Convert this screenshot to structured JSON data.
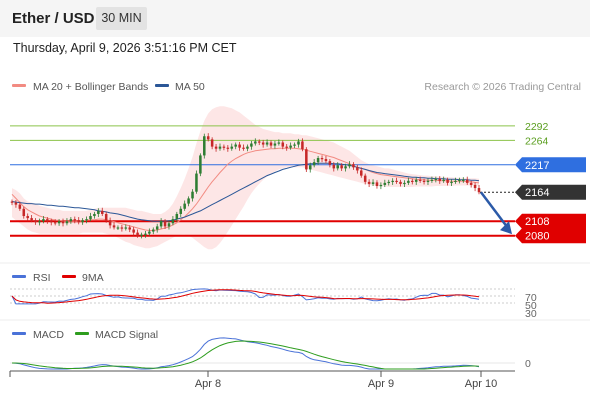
{
  "header": {
    "title": "Ether / USD",
    "timeframe": "30 MIN",
    "datetime": "Thursday, April 9, 2026 3:51:16 PM CET"
  },
  "legend": {
    "ma20_bb": "MA 20 + Bollinger Bands",
    "ma50": "MA 50",
    "credit": "Research © 2026 Trading Central"
  },
  "colors": {
    "up": "#2e7d32",
    "down": "#c62828",
    "ma20": "#f28b82",
    "ma50": "#2b5797",
    "band": "#fde2e2",
    "resistance": "#8bc34a",
    "pivot": "#2f6fe0",
    "support": "#e00000",
    "last": "#333333",
    "rsi": "#4a72d8",
    "rsi_ma": "#e00000",
    "macd": "#4a72d8",
    "macd_signal": "#2e9d1e",
    "arrow": "#2b5aa8"
  },
  "chart_data": [
    {
      "type": "candlestick",
      "title": "Ether / USD",
      "timeframe": "30 MIN",
      "x_ticks": [
        "Apr 8",
        "Apr 9",
        "Apr 10"
      ],
      "ylim": [
        2037,
        2342
      ],
      "levels": [
        {
          "value": 2292,
          "label": "2292",
          "kind": "resistance"
        },
        {
          "value": 2264,
          "label": "2264",
          "kind": "resistance"
        },
        {
          "value": 2217,
          "label": "2217",
          "kind": "pivot"
        },
        {
          "value": 2164,
          "label": "2164",
          "kind": "last"
        },
        {
          "value": 2108,
          "label": "2108",
          "kind": "support"
        },
        {
          "value": 2080,
          "label": "2080",
          "kind": "support"
        }
      ],
      "close": [
        2144,
        2140,
        2132,
        2118,
        2114,
        2110,
        2106,
        2108,
        2112,
        2108,
        2106,
        2104,
        2108,
        2104,
        2108,
        2112,
        2110,
        2106,
        2110,
        2112,
        2118,
        2122,
        2128,
        2122,
        2110,
        2100,
        2096,
        2096,
        2094,
        2096,
        2092,
        2086,
        2080,
        2082,
        2084,
        2088,
        2092,
        2098,
        2108,
        2098,
        2104,
        2112,
        2122,
        2132,
        2142,
        2152,
        2165,
        2200,
        2235,
        2272,
        2266,
        2252,
        2248,
        2252,
        2250,
        2248,
        2252,
        2256,
        2250,
        2248,
        2252,
        2258,
        2262,
        2260,
        2256,
        2260,
        2254,
        2258,
        2260,
        2252,
        2250,
        2254,
        2256,
        2262,
        2247,
        2208,
        2216,
        2222,
        2230,
        2228,
        2224,
        2217,
        2210,
        2216,
        2210,
        2214,
        2218,
        2212,
        2206,
        2196,
        2184,
        2180,
        2183,
        2176,
        2178,
        2182,
        2184,
        2186,
        2184,
        2180,
        2182,
        2186,
        2184,
        2188,
        2186,
        2184,
        2186,
        2188,
        2190,
        2186,
        2188,
        2182,
        2184,
        2186,
        2188,
        2188,
        2182,
        2178,
        2172,
        2164
      ],
      "ma20": [
        2160,
        2152,
        2144,
        2136,
        2130,
        2126,
        2122,
        2118,
        2116,
        2114,
        2112,
        2110,
        2110,
        2108,
        2108,
        2108,
        2108,
        2108,
        2109,
        2110,
        2111,
        2111,
        2112,
        2112,
        2111,
        2109,
        2107,
        2105,
        2103,
        2101,
        2099,
        2097,
        2095,
        2093,
        2091,
        2090,
        2090,
        2091,
        2093,
        2095,
        2097,
        2101,
        2105,
        2111,
        2117,
        2124,
        2132,
        2141,
        2152,
        2163,
        2174,
        2184,
        2193,
        2202,
        2210,
        2218,
        2224,
        2229,
        2233,
        2237,
        2240,
        2242,
        2244,
        2245,
        2246,
        2247,
        2248,
        2248,
        2249,
        2249,
        2249,
        2249,
        2249,
        2248,
        2247,
        2245,
        2243,
        2241,
        2239,
        2237,
        2235,
        2233,
        2231,
        2228,
        2225,
        2222,
        2219,
        2215,
        2212,
        2210,
        2208,
        2205,
        2202,
        2200,
        2198,
        2197,
        2196,
        2195,
        2194,
        2193,
        2192,
        2191,
        2190,
        2189,
        2188,
        2188,
        2187,
        2187,
        2187,
        2186,
        2186,
        2186,
        2185,
        2185,
        2185,
        2185,
        2184,
        2184,
        2183,
        2182
      ],
      "ma50": [
        2146,
        2145,
        2144,
        2143,
        2142,
        2142,
        2141,
        2141,
        2140,
        2139,
        2139,
        2138,
        2137,
        2137,
        2136,
        2135,
        2134,
        2134,
        2133,
        2132,
        2131,
        2130,
        2128,
        2127,
        2126,
        2124,
        2123,
        2122,
        2120,
        2118,
        2116,
        2114,
        2112,
        2111,
        2110,
        2109,
        2108,
        2108,
        2108,
        2108,
        2109,
        2110,
        2112,
        2114,
        2116,
        2119,
        2122,
        2125,
        2128,
        2132,
        2136,
        2140,
        2144,
        2148,
        2152,
        2156,
        2160,
        2164,
        2168,
        2172,
        2176,
        2180,
        2184,
        2188,
        2192,
        2196,
        2199,
        2202,
        2205,
        2208,
        2210,
        2212,
        2214,
        2216,
        2217,
        2218,
        2219,
        2219,
        2220,
        2220,
        2220,
        2220,
        2219,
        2219,
        2218,
        2217,
        2216,
        2214,
        2212,
        2210,
        2208,
        2206,
        2204,
        2202,
        2201,
        2200,
        2199,
        2198,
        2197,
        2196,
        2195,
        2194,
        2193,
        2193,
        2192,
        2192,
        2191,
        2191,
        2190,
        2190,
        2190,
        2189,
        2189,
        2189,
        2188,
        2188,
        2188,
        2187,
        2187,
        2186
      ],
      "bb_upper": [
        2172,
        2168,
        2162,
        2152,
        2146,
        2144,
        2142,
        2138,
        2136,
        2134,
        2132,
        2130,
        2130,
        2128,
        2128,
        2128,
        2128,
        2128,
        2128,
        2128,
        2130,
        2132,
        2134,
        2134,
        2134,
        2134,
        2134,
        2134,
        2134,
        2134,
        2132,
        2130,
        2128,
        2128,
        2126,
        2124,
        2122,
        2122,
        2122,
        2126,
        2132,
        2142,
        2156,
        2172,
        2190,
        2210,
        2232,
        2258,
        2282,
        2302,
        2316,
        2324,
        2328,
        2330,
        2330,
        2328,
        2326,
        2322,
        2318,
        2312,
        2306,
        2300,
        2294,
        2290,
        2286,
        2284,
        2282,
        2280,
        2280,
        2278,
        2278,
        2278,
        2276,
        2276,
        2274,
        2274,
        2272,
        2270,
        2268,
        2266,
        2264,
        2262,
        2260,
        2256,
        2252,
        2248,
        2244,
        2238,
        2232,
        2226,
        2222,
        2218,
        2216,
        2214,
        2212,
        2210,
        2210,
        2208,
        2206,
        2204,
        2202,
        2200,
        2199,
        2198,
        2197,
        2196,
        2196,
        2195,
        2195,
        2194,
        2194,
        2193,
        2193,
        2192,
        2192,
        2192,
        2191,
        2191,
        2191,
        2190
      ],
      "bb_lower": [
        2116,
        2110,
        2104,
        2098,
        2092,
        2088,
        2086,
        2084,
        2084,
        2084,
        2084,
        2084,
        2084,
        2084,
        2084,
        2084,
        2084,
        2084,
        2086,
        2086,
        2086,
        2086,
        2086,
        2086,
        2084,
        2082,
        2080,
        2076,
        2072,
        2068,
        2066,
        2062,
        2060,
        2058,
        2056,
        2056,
        2058,
        2060,
        2064,
        2068,
        2072,
        2076,
        2080,
        2082,
        2082,
        2080,
        2076,
        2070,
        2064,
        2058,
        2054,
        2054,
        2058,
        2066,
        2076,
        2088,
        2100,
        2112,
        2124,
        2136,
        2150,
        2162,
        2172,
        2180,
        2188,
        2194,
        2200,
        2204,
        2208,
        2210,
        2212,
        2212,
        2212,
        2212,
        2212,
        2210,
        2208,
        2206,
        2204,
        2202,
        2200,
        2198,
        2196,
        2194,
        2192,
        2190,
        2188,
        2186,
        2184,
        2182,
        2180,
        2178,
        2177,
        2176,
        2175,
        2175,
        2174,
        2174,
        2174,
        2174,
        2174,
        2174,
        2174,
        2175,
        2175,
        2175,
        2175,
        2175,
        2176,
        2176,
        2176,
        2176,
        2176,
        2177,
        2177,
        2177,
        2177,
        2177,
        2177,
        2177
      ]
    },
    {
      "type": "line",
      "name": "RSI",
      "legend": [
        "RSI",
        "9MA"
      ],
      "ylim": [
        0,
        100
      ],
      "y_ticks": [
        "70",
        "50",
        "30"
      ]
    },
    {
      "type": "line",
      "name": "MACD",
      "legend": [
        "MACD",
        "MACD Signal"
      ],
      "y_ticks": [
        "0"
      ]
    }
  ],
  "oscillators": {
    "rsi_label": "RSI",
    "rsi_ma_label": "9MA",
    "rsi_ticks": [
      "70",
      "50",
      "30"
    ],
    "macd_label": "MACD",
    "macd_signal_label": "MACD Signal",
    "macd_tick": "0"
  },
  "x_axis": [
    "Apr 8",
    "Apr 9",
    "Apr 10"
  ]
}
